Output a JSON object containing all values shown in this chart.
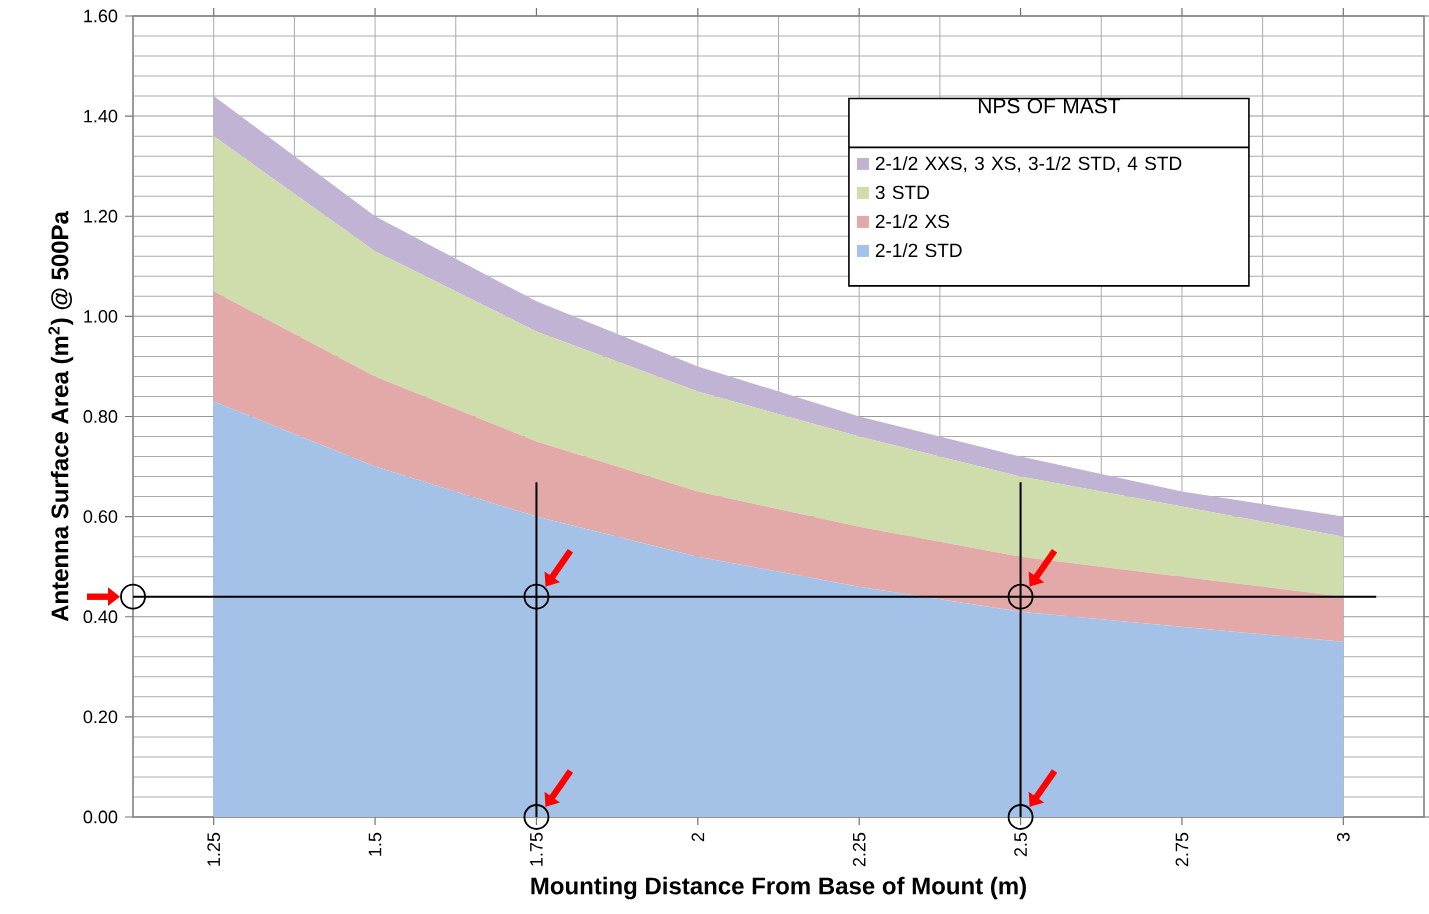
{
  "chart_data": {
    "type": "area",
    "stacked": true,
    "xlabel": "Mounting Distance From Base of Mount (m)",
    "ylabel": "Antenna Surface Area (m$^{2}$) @ 500Pa",
    "legend_title": "NPS OF MAST",
    "x": [
      1.25,
      1.5,
      1.75,
      2,
      2.25,
      2.5,
      2.75,
      3
    ],
    "series": [
      {
        "name": "2-1/2 STD",
        "color": "#a4c2e8",
        "values": [
          0.83,
          0.7,
          0.6,
          0.52,
          0.46,
          0.41,
          0.38,
          0.35
        ]
      },
      {
        "name": "2-1/2 XS",
        "color": "#e3a9a8",
        "values": [
          0.22,
          0.18,
          0.15,
          0.13,
          0.12,
          0.11,
          0.1,
          0.09
        ]
      },
      {
        "name": "3 STD",
        "color": "#cfddac",
        "values": [
          0.31,
          0.25,
          0.22,
          0.2,
          0.18,
          0.16,
          0.14,
          0.12
        ]
      },
      {
        "name": "2-1/2 XXS, 3 XS, 3-1/2 STD, 4 STD",
        "color": "#c0b3d3",
        "values": [
          0.08,
          0.07,
          0.06,
          0.05,
          0.04,
          0.04,
          0.03,
          0.04
        ]
      }
    ],
    "xlim": [
      1.125,
      3.125
    ],
    "xticks": [
      1.25,
      1.5,
      1.75,
      2,
      2.25,
      2.5,
      2.75,
      3
    ],
    "ylim": [
      0,
      1.6
    ],
    "yticks": [
      {
        "value": 0,
        "label": "0.00"
      },
      {
        "value": 0.2,
        "label": "0.20"
      },
      {
        "value": 0.4,
        "label": "0.40"
      },
      {
        "value": 0.6,
        "label": "0.60"
      },
      {
        "value": 0.8,
        "label": "0.80"
      },
      {
        "value": 1.0,
        "label": "1.00"
      },
      {
        "value": 1.2,
        "label": "1.20"
      },
      {
        "value": 1.4,
        "label": "1.40"
      },
      {
        "value": 1.6,
        "label": "1.60"
      }
    ],
    "grid": true,
    "legend": "top right",
    "ref_lines": [
      {
        "axis": "y",
        "value": 0.44,
        "color": "#000000"
      },
      {
        "axis": "x",
        "value": 1.75,
        "color": "#000000"
      },
      {
        "axis": "x",
        "value": 2.5,
        "color": "#000000"
      }
    ]
  }
}
